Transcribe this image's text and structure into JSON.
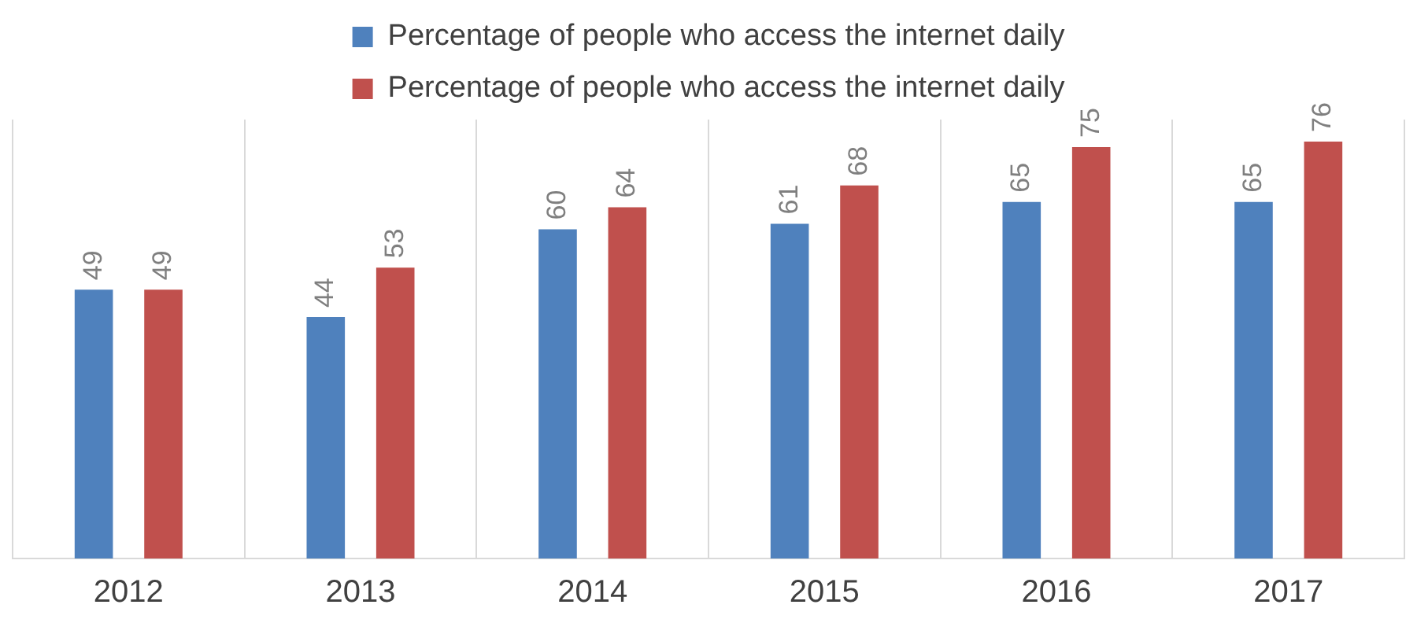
{
  "chart_data": {
    "type": "bar",
    "categories": [
      "2012",
      "2013",
      "2014",
      "2015",
      "2016",
      "2017"
    ],
    "series": [
      {
        "name": "Percentage of people who access the internet daily",
        "color": "#4f81bd",
        "values": [
          49,
          44,
          60,
          61,
          65,
          65
        ]
      },
      {
        "name": "Percentage of people who access the internet daily",
        "color": "#c0504d",
        "values": [
          49,
          53,
          64,
          68,
          75,
          76
        ]
      }
    ],
    "data_labels": true,
    "grid": "x",
    "legend": "top"
  }
}
